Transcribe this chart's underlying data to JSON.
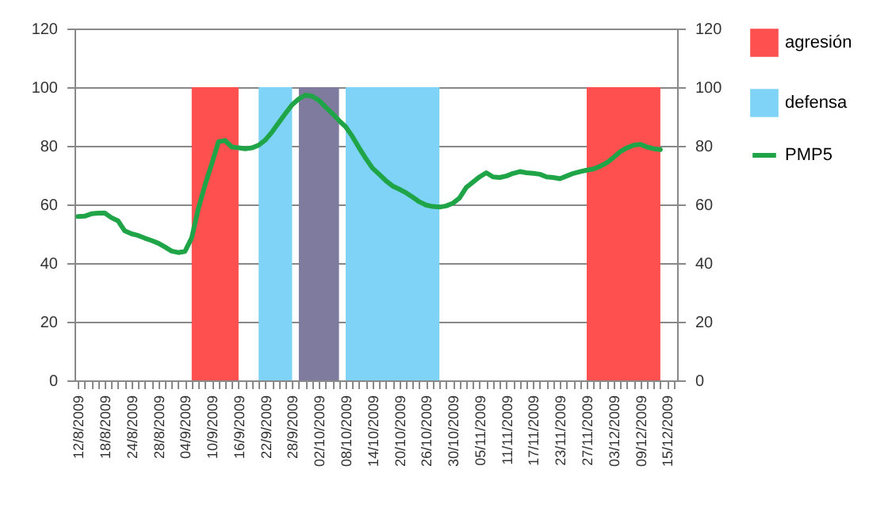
{
  "chart_data": {
    "type": "line",
    "categories": [
      "12/8/2009",
      null,
      null,
      null,
      "18/8/2009",
      null,
      null,
      null,
      "24/8/2009",
      null,
      null,
      null,
      "28/8/2009",
      null,
      null,
      null,
      "04/9/2009",
      null,
      null,
      null,
      "10/9/2009",
      null,
      null,
      null,
      "16/9/2009",
      null,
      null,
      null,
      "22/9/2009",
      null,
      null,
      null,
      "28/9/2009",
      null,
      null,
      null,
      "02/10/2009",
      null,
      null,
      null,
      "08/10/2009",
      null,
      null,
      null,
      "14/10/2009",
      null,
      null,
      null,
      "20/10/2009",
      null,
      null,
      null,
      "26/10/2009",
      null,
      null,
      null,
      "30/10/2009",
      null,
      null,
      null,
      "05/11/2009",
      null,
      null,
      null,
      "11/11/2009",
      null,
      null,
      null,
      "17/11/2009",
      null,
      null,
      null,
      "23/11/2009",
      null,
      null,
      null,
      "27/11/2009",
      null,
      null,
      null,
      "03/12/2009",
      null,
      null,
      null,
      "09/12/2009",
      null,
      null,
      null,
      "15/12/2009",
      null
    ],
    "series": [
      {
        "name": "agresión",
        "type": "area",
        "color": "#ff5050",
        "values": [
          null,
          null,
          null,
          null,
          null,
          null,
          null,
          null,
          null,
          null,
          null,
          null,
          null,
          null,
          null,
          null,
          null,
          100,
          100,
          100,
          100,
          100,
          100,
          100,
          100,
          null,
          null,
          null,
          null,
          null,
          null,
          null,
          null,
          null,
          null,
          null,
          null,
          null,
          null,
          null,
          null,
          null,
          null,
          null,
          null,
          null,
          null,
          null,
          null,
          null,
          null,
          null,
          null,
          null,
          null,
          null,
          null,
          null,
          null,
          null,
          null,
          null,
          null,
          null,
          null,
          null,
          null,
          null,
          null,
          null,
          null,
          null,
          null,
          null,
          null,
          null,
          100,
          100,
          100,
          100,
          100,
          100,
          100,
          100,
          100,
          100,
          100,
          100,
          null,
          null
        ]
      },
      {
        "name": "defensa",
        "type": "area",
        "color": "#7fd3f7",
        "values": [
          null,
          null,
          null,
          null,
          null,
          null,
          null,
          null,
          null,
          null,
          null,
          null,
          null,
          null,
          null,
          null,
          null,
          null,
          null,
          null,
          null,
          null,
          null,
          null,
          null,
          null,
          null,
          100,
          100,
          100,
          100,
          100,
          100,
          null,
          null,
          null,
          null,
          null,
          null,
          null,
          100,
          100,
          100,
          100,
          100,
          100,
          100,
          100,
          100,
          100,
          100,
          100,
          100,
          100,
          100,
          null,
          null,
          null,
          null,
          null,
          null,
          null,
          null,
          null,
          null,
          null,
          null,
          null,
          null,
          null,
          null,
          null,
          null,
          null,
          null,
          null,
          null,
          null,
          null,
          null,
          null,
          null,
          null,
          null,
          null,
          null,
          null,
          null,
          null,
          null
        ]
      },
      {
        "type": "area",
        "color": "#7f7b9e",
        "values": [
          null,
          null,
          null,
          null,
          null,
          null,
          null,
          null,
          null,
          null,
          null,
          null,
          null,
          null,
          null,
          null,
          null,
          null,
          null,
          null,
          null,
          null,
          null,
          null,
          null,
          null,
          null,
          null,
          null,
          null,
          null,
          null,
          null,
          100,
          100,
          100,
          100,
          100,
          100,
          100,
          null,
          null,
          null,
          null,
          null,
          null,
          null,
          null,
          null,
          null,
          null,
          null,
          null,
          null,
          null,
          null,
          null,
          null,
          null,
          null,
          null,
          null,
          null,
          null,
          null,
          null,
          null,
          null,
          null,
          null,
          null,
          null,
          null,
          null,
          null,
          null,
          null,
          null,
          null,
          null,
          null,
          null,
          null,
          null,
          null,
          null,
          null,
          null,
          null,
          null
        ]
      },
      {
        "name": "PMP5",
        "axis": "y2",
        "color": "#1fa547",
        "values": [
          55.9,
          56,
          56.8,
          57,
          57.1,
          55.5,
          54.4,
          51,
          50,
          49.4,
          48.5,
          47.7,
          46.8,
          45.5,
          44.1,
          43.6,
          44,
          48.6,
          58.6,
          66.7,
          73.9,
          81.4,
          81.8,
          79.6,
          79.3,
          79,
          79.3,
          80.2,
          82,
          84.7,
          87.9,
          91,
          94,
          96,
          97.3,
          96.9,
          95.5,
          93.2,
          91,
          88.6,
          86.5,
          83.2,
          79.3,
          75.7,
          72.4,
          70.3,
          68.1,
          66.3,
          65.2,
          64,
          62.5,
          60.9,
          59.8,
          59.3,
          59.1,
          59.5,
          60.4,
          62.2,
          65.8,
          67.6,
          69.4,
          70.8,
          69.4,
          69.2,
          69.7,
          70.6,
          71.2,
          70.8,
          70.6,
          70.3,
          69.4,
          69.2,
          68.8,
          69.7,
          70.6,
          71.2,
          71.7,
          72.1,
          73,
          74.2,
          76,
          78,
          79.3,
          80.2,
          80.5,
          79.6,
          79,
          78.7,
          null,
          null
        ]
      }
    ],
    "ylim": [
      0,
      120
    ],
    "yticks": [
      0,
      20,
      40,
      60,
      80,
      100,
      120
    ],
    "y2lim": [
      0,
      120
    ],
    "y2ticks": [
      0,
      20,
      40,
      60,
      80,
      100,
      120
    ],
    "grid": "y",
    "legend": "right"
  }
}
